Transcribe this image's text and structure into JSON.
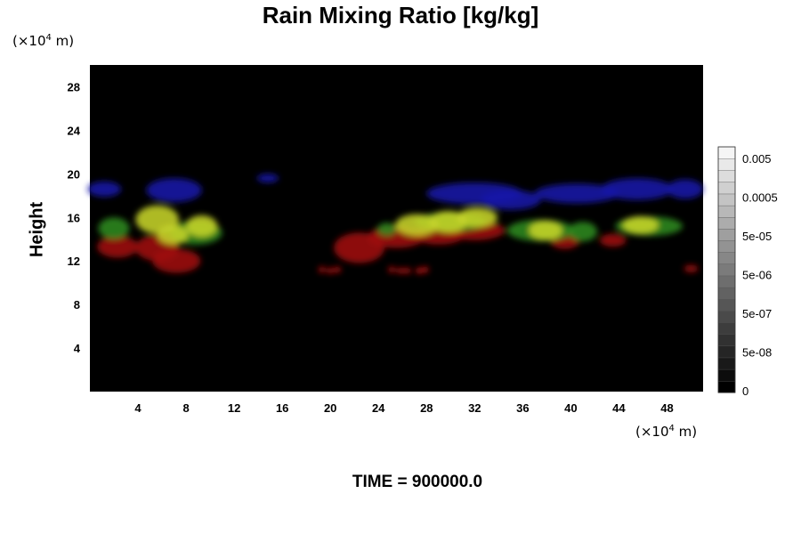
{
  "chart_data": {
    "type": "heatmap",
    "title": "Rain Mixing Ratio [kg/kg]",
    "ylabel": "Height",
    "xlabel": "",
    "x_unit": {
      "prefix": "(×10",
      "exponent": "4",
      "suffix": " m)"
    },
    "y_unit": {
      "prefix": "(×10",
      "exponent": "4",
      "suffix": " m)"
    },
    "xlim": [
      0,
      51
    ],
    "ylim": [
      0,
      30
    ],
    "x_ticks": [
      4,
      8,
      12,
      16,
      20,
      24,
      28,
      32,
      36,
      40,
      44,
      48
    ],
    "y_ticks": [
      4,
      8,
      12,
      16,
      20,
      24,
      28
    ],
    "background_color": "#000000",
    "grid": false,
    "colorbar": {
      "labels": [
        "0",
        "5e-08",
        "5e-07",
        "5e-06",
        "5e-05",
        "0.0005",
        "0.005"
      ],
      "color_low": "#000000",
      "color_high": "#f5f5f5",
      "levels": 21
    },
    "regions": [
      {
        "name": "blue",
        "color": "#1a1aa8",
        "blobs": [
          [
            1.2,
            18.6,
            1.4,
            0.7
          ],
          [
            7.0,
            18.5,
            2.3,
            1.1
          ],
          [
            14.8,
            19.6,
            0.9,
            0.4
          ],
          [
            32.0,
            18.2,
            4.0,
            1.0
          ],
          [
            35.0,
            17.6,
            2.5,
            0.9
          ],
          [
            40.5,
            18.2,
            3.5,
            0.9
          ],
          [
            45.5,
            18.6,
            3.0,
            1.0
          ],
          [
            49.5,
            18.6,
            1.5,
            0.9
          ]
        ]
      },
      {
        "name": "red",
        "color": "#a01010",
        "blobs": [
          [
            2.3,
            13.3,
            1.7,
            1.0
          ],
          [
            5.6,
            13.2,
            1.8,
            1.2
          ],
          [
            7.2,
            12.0,
            2.0,
            1.1
          ],
          [
            22.4,
            13.2,
            2.1,
            1.4
          ],
          [
            25.5,
            14.2,
            2.4,
            1.0
          ],
          [
            29.0,
            14.4,
            2.2,
            0.9
          ],
          [
            32.0,
            14.8,
            2.5,
            0.9
          ],
          [
            39.5,
            13.8,
            1.2,
            0.7
          ],
          [
            43.5,
            13.9,
            1.1,
            0.6
          ],
          [
            50.0,
            11.3,
            0.6,
            0.35
          ]
        ]
      },
      {
        "name": "red-dots",
        "color": "#b01010",
        "blobs": [
          [
            19.3,
            11.2,
            0.3,
            0.3
          ],
          [
            20.0,
            11.1,
            0.3,
            0.3
          ],
          [
            20.6,
            11.2,
            0.3,
            0.3
          ],
          [
            25.1,
            11.2,
            0.3,
            0.3
          ],
          [
            25.8,
            11.1,
            0.3,
            0.3
          ],
          [
            26.4,
            11.1,
            0.3,
            0.3
          ],
          [
            27.4,
            11.1,
            0.35,
            0.3
          ],
          [
            27.9,
            11.2,
            0.3,
            0.3
          ]
        ]
      },
      {
        "name": "green",
        "color": "#2f8a1c",
        "blobs": [
          [
            2.0,
            15.0,
            1.3,
            1.0
          ],
          [
            8.8,
            14.6,
            2.2,
            1.1
          ],
          [
            24.7,
            14.9,
            0.8,
            0.6
          ],
          [
            30.0,
            15.6,
            3.0,
            0.9
          ],
          [
            37.5,
            14.8,
            2.8,
            1.0
          ],
          [
            41.0,
            14.7,
            1.2,
            0.9
          ],
          [
            46.5,
            15.2,
            2.8,
            0.9
          ]
        ]
      },
      {
        "name": "yellow",
        "color": "#c6d42a",
        "blobs": [
          [
            5.6,
            15.8,
            1.8,
            1.3
          ],
          [
            6.9,
            14.4,
            1.3,
            0.9
          ],
          [
            9.3,
            15.2,
            1.3,
            1.0
          ],
          [
            27.2,
            15.3,
            1.8,
            1.0
          ],
          [
            29.8,
            15.6,
            1.6,
            1.0
          ],
          [
            32.2,
            16.0,
            1.7,
            0.9
          ],
          [
            37.9,
            14.8,
            1.4,
            0.9
          ],
          [
            45.8,
            15.3,
            1.5,
            0.8
          ]
        ]
      }
    ]
  },
  "footer": {
    "time_text": "TIME = 900000.0"
  }
}
